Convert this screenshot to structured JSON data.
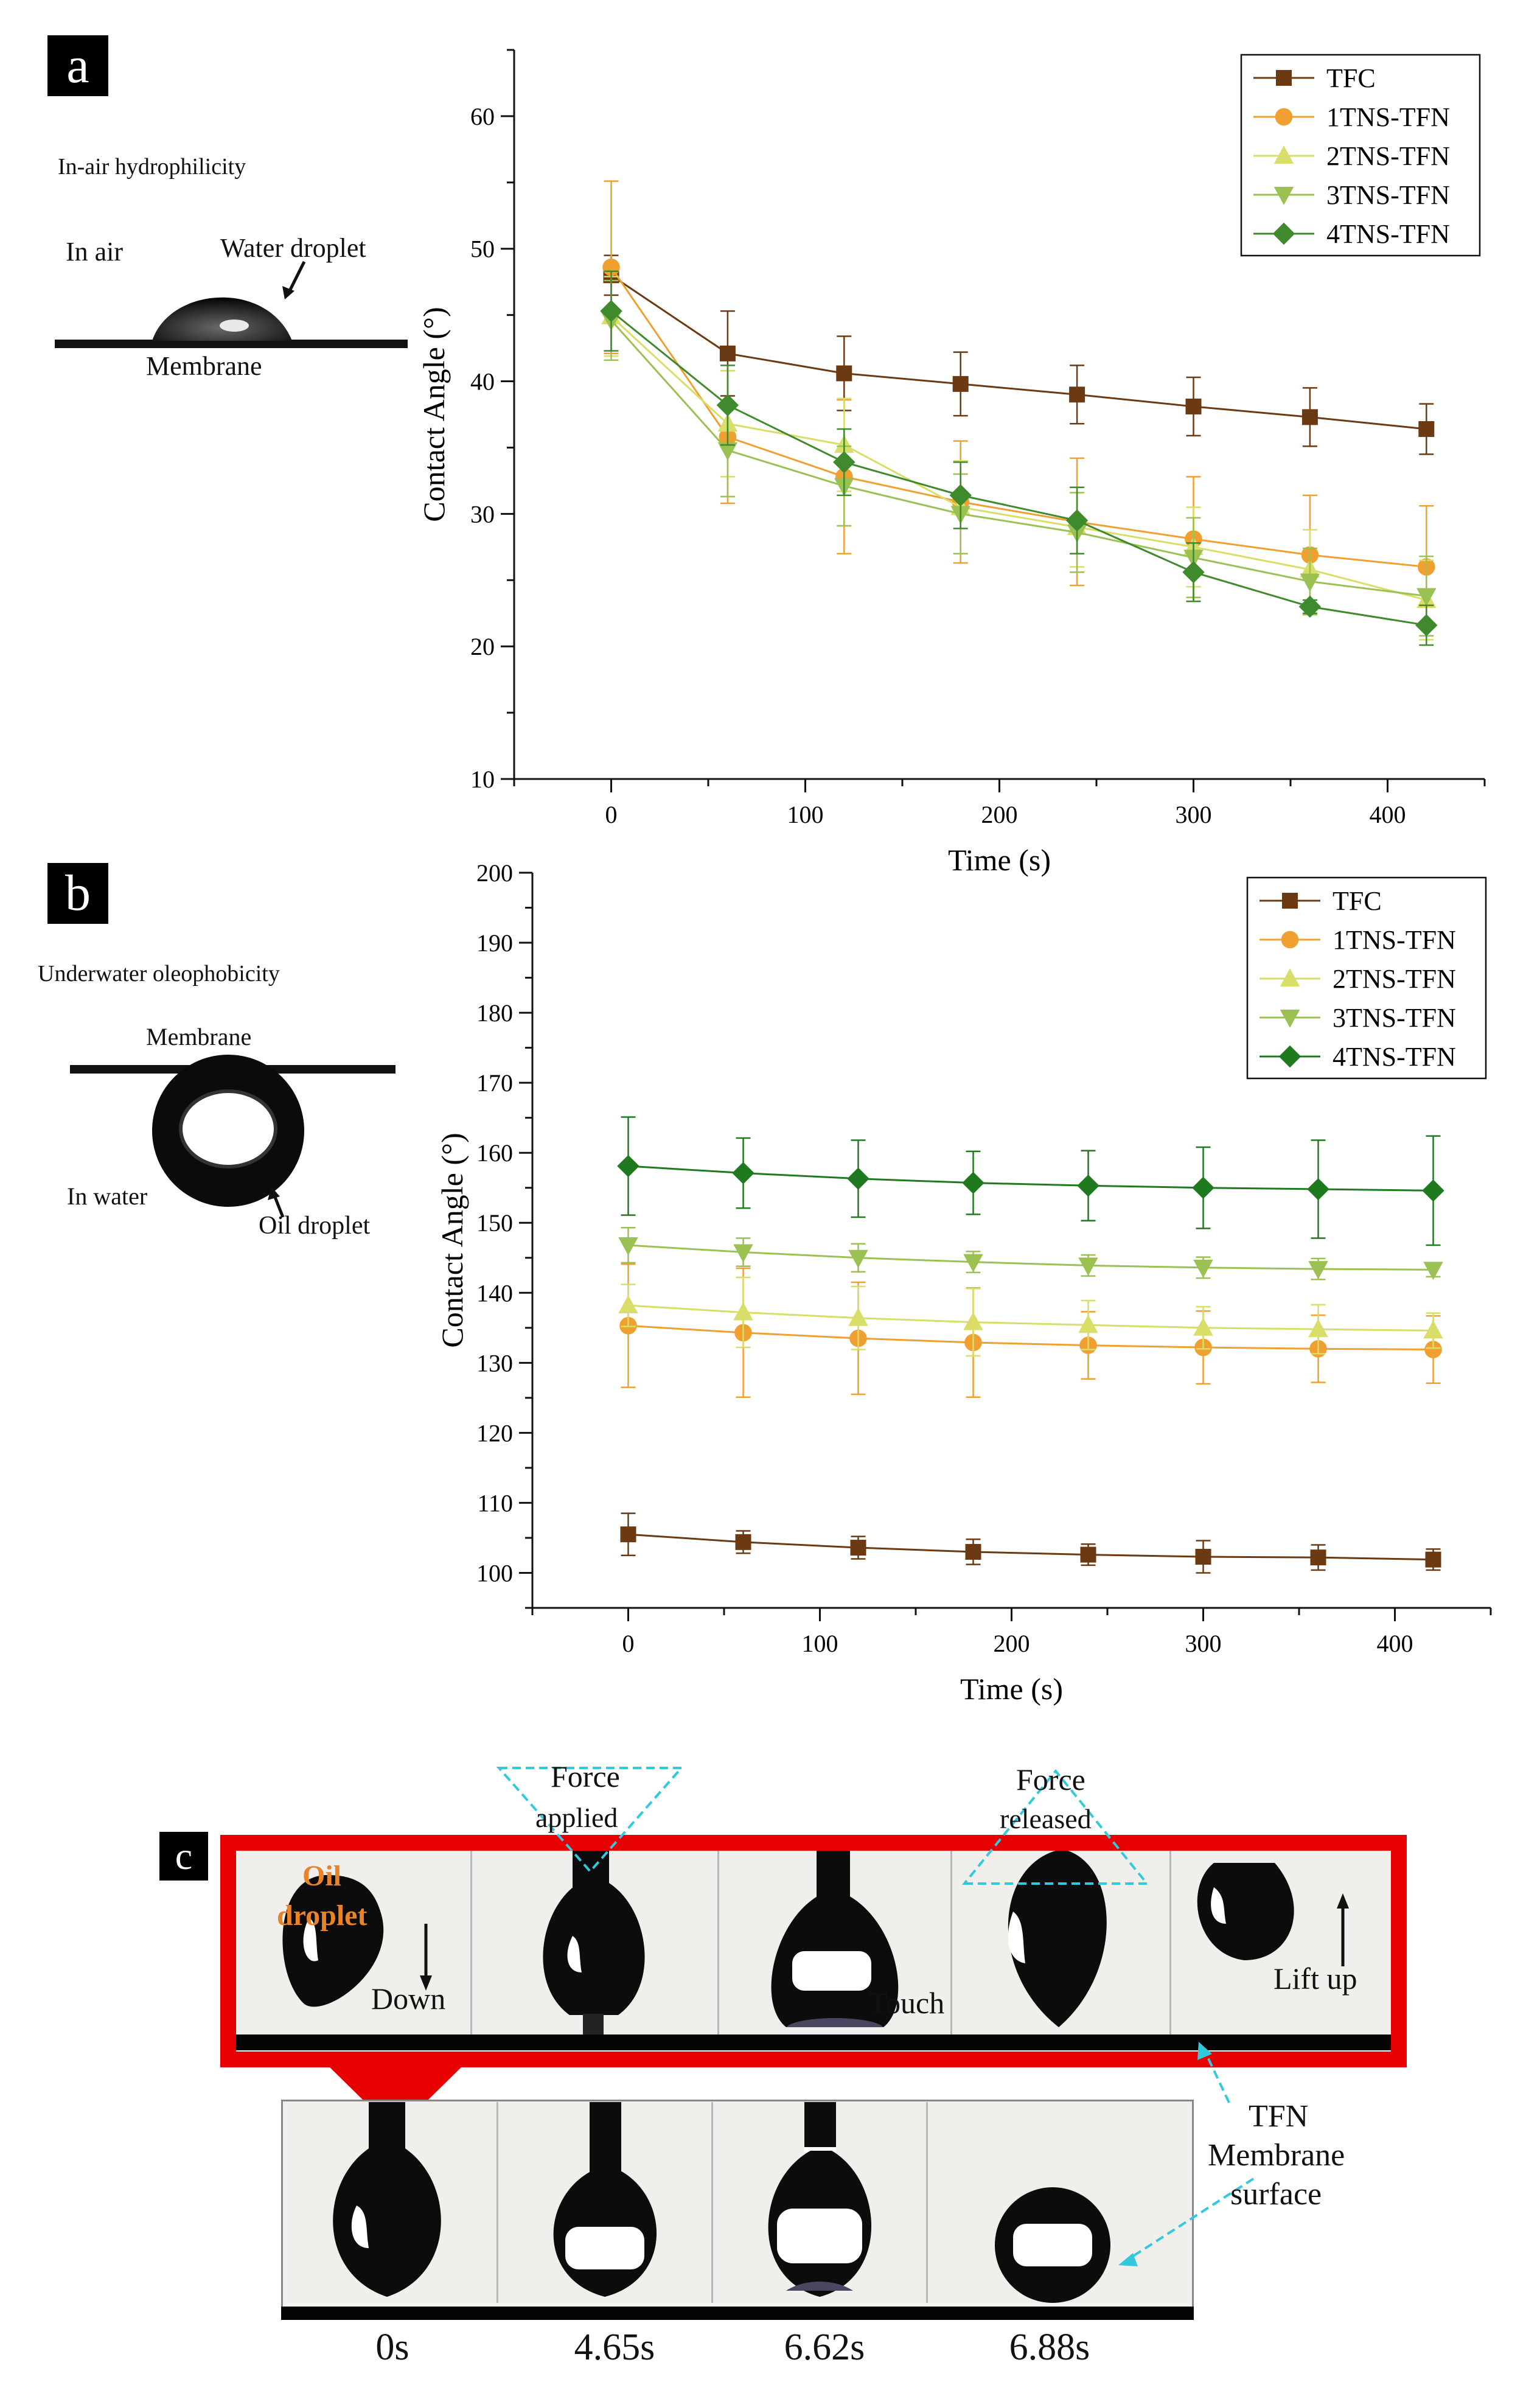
{
  "panel_a": {
    "letter": "a",
    "heading": "In-air hydrophilicity",
    "labels": {
      "env": "In air",
      "droplet": "Water droplet",
      "membrane": "Membrane"
    }
  },
  "panel_b": {
    "letter": "b",
    "heading": "Underwater oleophobicity",
    "labels": {
      "membrane": "Membrane",
      "env": "In water",
      "droplet": "Oil droplet"
    }
  },
  "panel_c": {
    "letter": "c",
    "frame_labels": {
      "oil": "Oil",
      "droplet": "droplet",
      "down": "Down",
      "touch": "Touch",
      "lift": "Lift up",
      "force_applied_1": "Force",
      "force_applied_2": "applied",
      "force_released_1": "Force",
      "force_released_2": "released"
    },
    "membrane_label": [
      "TFN",
      "Membrane",
      "surface"
    ],
    "times": [
      "0s",
      "4.65s",
      "6.62s",
      "6.88s"
    ],
    "colors": {
      "frame_red": "#e60000",
      "arrow_cyan": "#33c9dd",
      "oil_text": "#e8832a"
    }
  },
  "chart_data": [
    {
      "type": "line",
      "id": "a",
      "xlabel": "Time (s)",
      "ylabel": "Contact Angle (°)",
      "xlim": [
        -50,
        450
      ],
      "ylim": [
        10,
        65
      ],
      "xticks": [
        0,
        100,
        200,
        300,
        400
      ],
      "yticks": [
        10,
        20,
        30,
        40,
        50,
        60
      ],
      "legend_position": "top-right",
      "x": [
        0,
        60,
        120,
        180,
        240,
        300,
        360,
        420
      ],
      "series": [
        {
          "name": "TFC",
          "color": "#6b3a12",
          "marker": "square",
          "values": [
            48.0,
            42.1,
            40.6,
            39.8,
            39.0,
            38.1,
            37.3,
            36.4
          ],
          "errors": [
            1.5,
            3.2,
            2.8,
            2.4,
            2.2,
            2.2,
            2.2,
            1.9
          ]
        },
        {
          "name": "1TNS-TFN",
          "color": "#f0a030",
          "marker": "circle",
          "values": [
            48.6,
            35.8,
            32.8,
            30.9,
            29.4,
            28.1,
            26.9,
            26.0
          ],
          "errors": [
            6.5,
            5.0,
            5.8,
            4.6,
            4.8,
            4.7,
            4.5,
            4.6
          ]
        },
        {
          "name": "2TNS-TFN",
          "color": "#d8de68",
          "marker": "triangle-up",
          "values": [
            44.9,
            36.8,
            35.2,
            30.5,
            29.0,
            27.5,
            25.8,
            23.5
          ],
          "errors": [
            3.0,
            4.0,
            3.5,
            3.5,
            3.0,
            3.0,
            3.0,
            3.0
          ]
        },
        {
          "name": "3TNS-TFN",
          "color": "#9bc153",
          "marker": "triangle-down",
          "values": [
            44.6,
            34.8,
            32.1,
            30.0,
            28.6,
            26.7,
            24.9,
            23.8
          ],
          "errors": [
            3.0,
            3.5,
            3.0,
            3.0,
            3.0,
            3.0,
            2.5,
            3.0
          ]
        },
        {
          "name": "4TNS-TFN",
          "color": "#3f8a2c",
          "marker": "diamond",
          "values": [
            45.3,
            38.2,
            33.9,
            31.4,
            29.5,
            25.6,
            23.0,
            21.6
          ],
          "errors": [
            3.0,
            3.0,
            2.5,
            2.5,
            2.5,
            2.2,
            0.5,
            1.5
          ]
        }
      ]
    },
    {
      "type": "line",
      "id": "b",
      "xlabel": "Time (s)",
      "ylabel": "Contact Angle (°)",
      "xlim": [
        -50,
        450
      ],
      "ylim": [
        95,
        200
      ],
      "xticks": [
        0,
        100,
        200,
        300,
        400
      ],
      "yticks": [
        100,
        110,
        120,
        130,
        140,
        150,
        160,
        170,
        180,
        190,
        200
      ],
      "legend_position": "top-right",
      "x": [
        0,
        60,
        120,
        180,
        240,
        300,
        360,
        420
      ],
      "series": [
        {
          "name": "TFC",
          "color": "#6b3a12",
          "marker": "square",
          "values": [
            105.5,
            104.4,
            103.6,
            103.0,
            102.6,
            102.3,
            102.2,
            101.9
          ],
          "errors": [
            3.0,
            1.6,
            1.6,
            1.8,
            1.5,
            2.3,
            1.8,
            1.5
          ]
        },
        {
          "name": "1TNS-TFN",
          "color": "#f0a030",
          "marker": "circle",
          "values": [
            135.3,
            134.3,
            133.5,
            132.9,
            132.5,
            132.2,
            132.0,
            131.9
          ],
          "errors": [
            8.8,
            9.2,
            8.0,
            7.8,
            4.8,
            5.2,
            4.8,
            4.8
          ]
        },
        {
          "name": "2TNS-TFN",
          "color": "#d8de68",
          "marker": "triangle-up",
          "values": [
            138.2,
            137.2,
            136.4,
            135.8,
            135.4,
            135.0,
            134.8,
            134.6
          ],
          "errors": [
            3.0,
            5.0,
            4.5,
            4.8,
            3.5,
            3.0,
            3.5,
            2.5
          ]
        },
        {
          "name": "3TNS-TFN",
          "color": "#9bc153",
          "marker": "triangle-down",
          "values": [
            146.8,
            145.8,
            145.0,
            144.4,
            143.9,
            143.6,
            143.4,
            143.3
          ],
          "errors": [
            2.5,
            2.0,
            2.0,
            1.5,
            1.5,
            1.5,
            1.5,
            1.0
          ]
        },
        {
          "name": "4TNS-TFN",
          "color": "#1f7a1f",
          "marker": "diamond",
          "values": [
            158.1,
            157.1,
            156.3,
            155.7,
            155.3,
            155.0,
            154.8,
            154.6
          ],
          "errors": [
            7.0,
            5.0,
            5.5,
            4.5,
            5.0,
            5.8,
            7.0,
            7.8
          ]
        }
      ]
    }
  ]
}
